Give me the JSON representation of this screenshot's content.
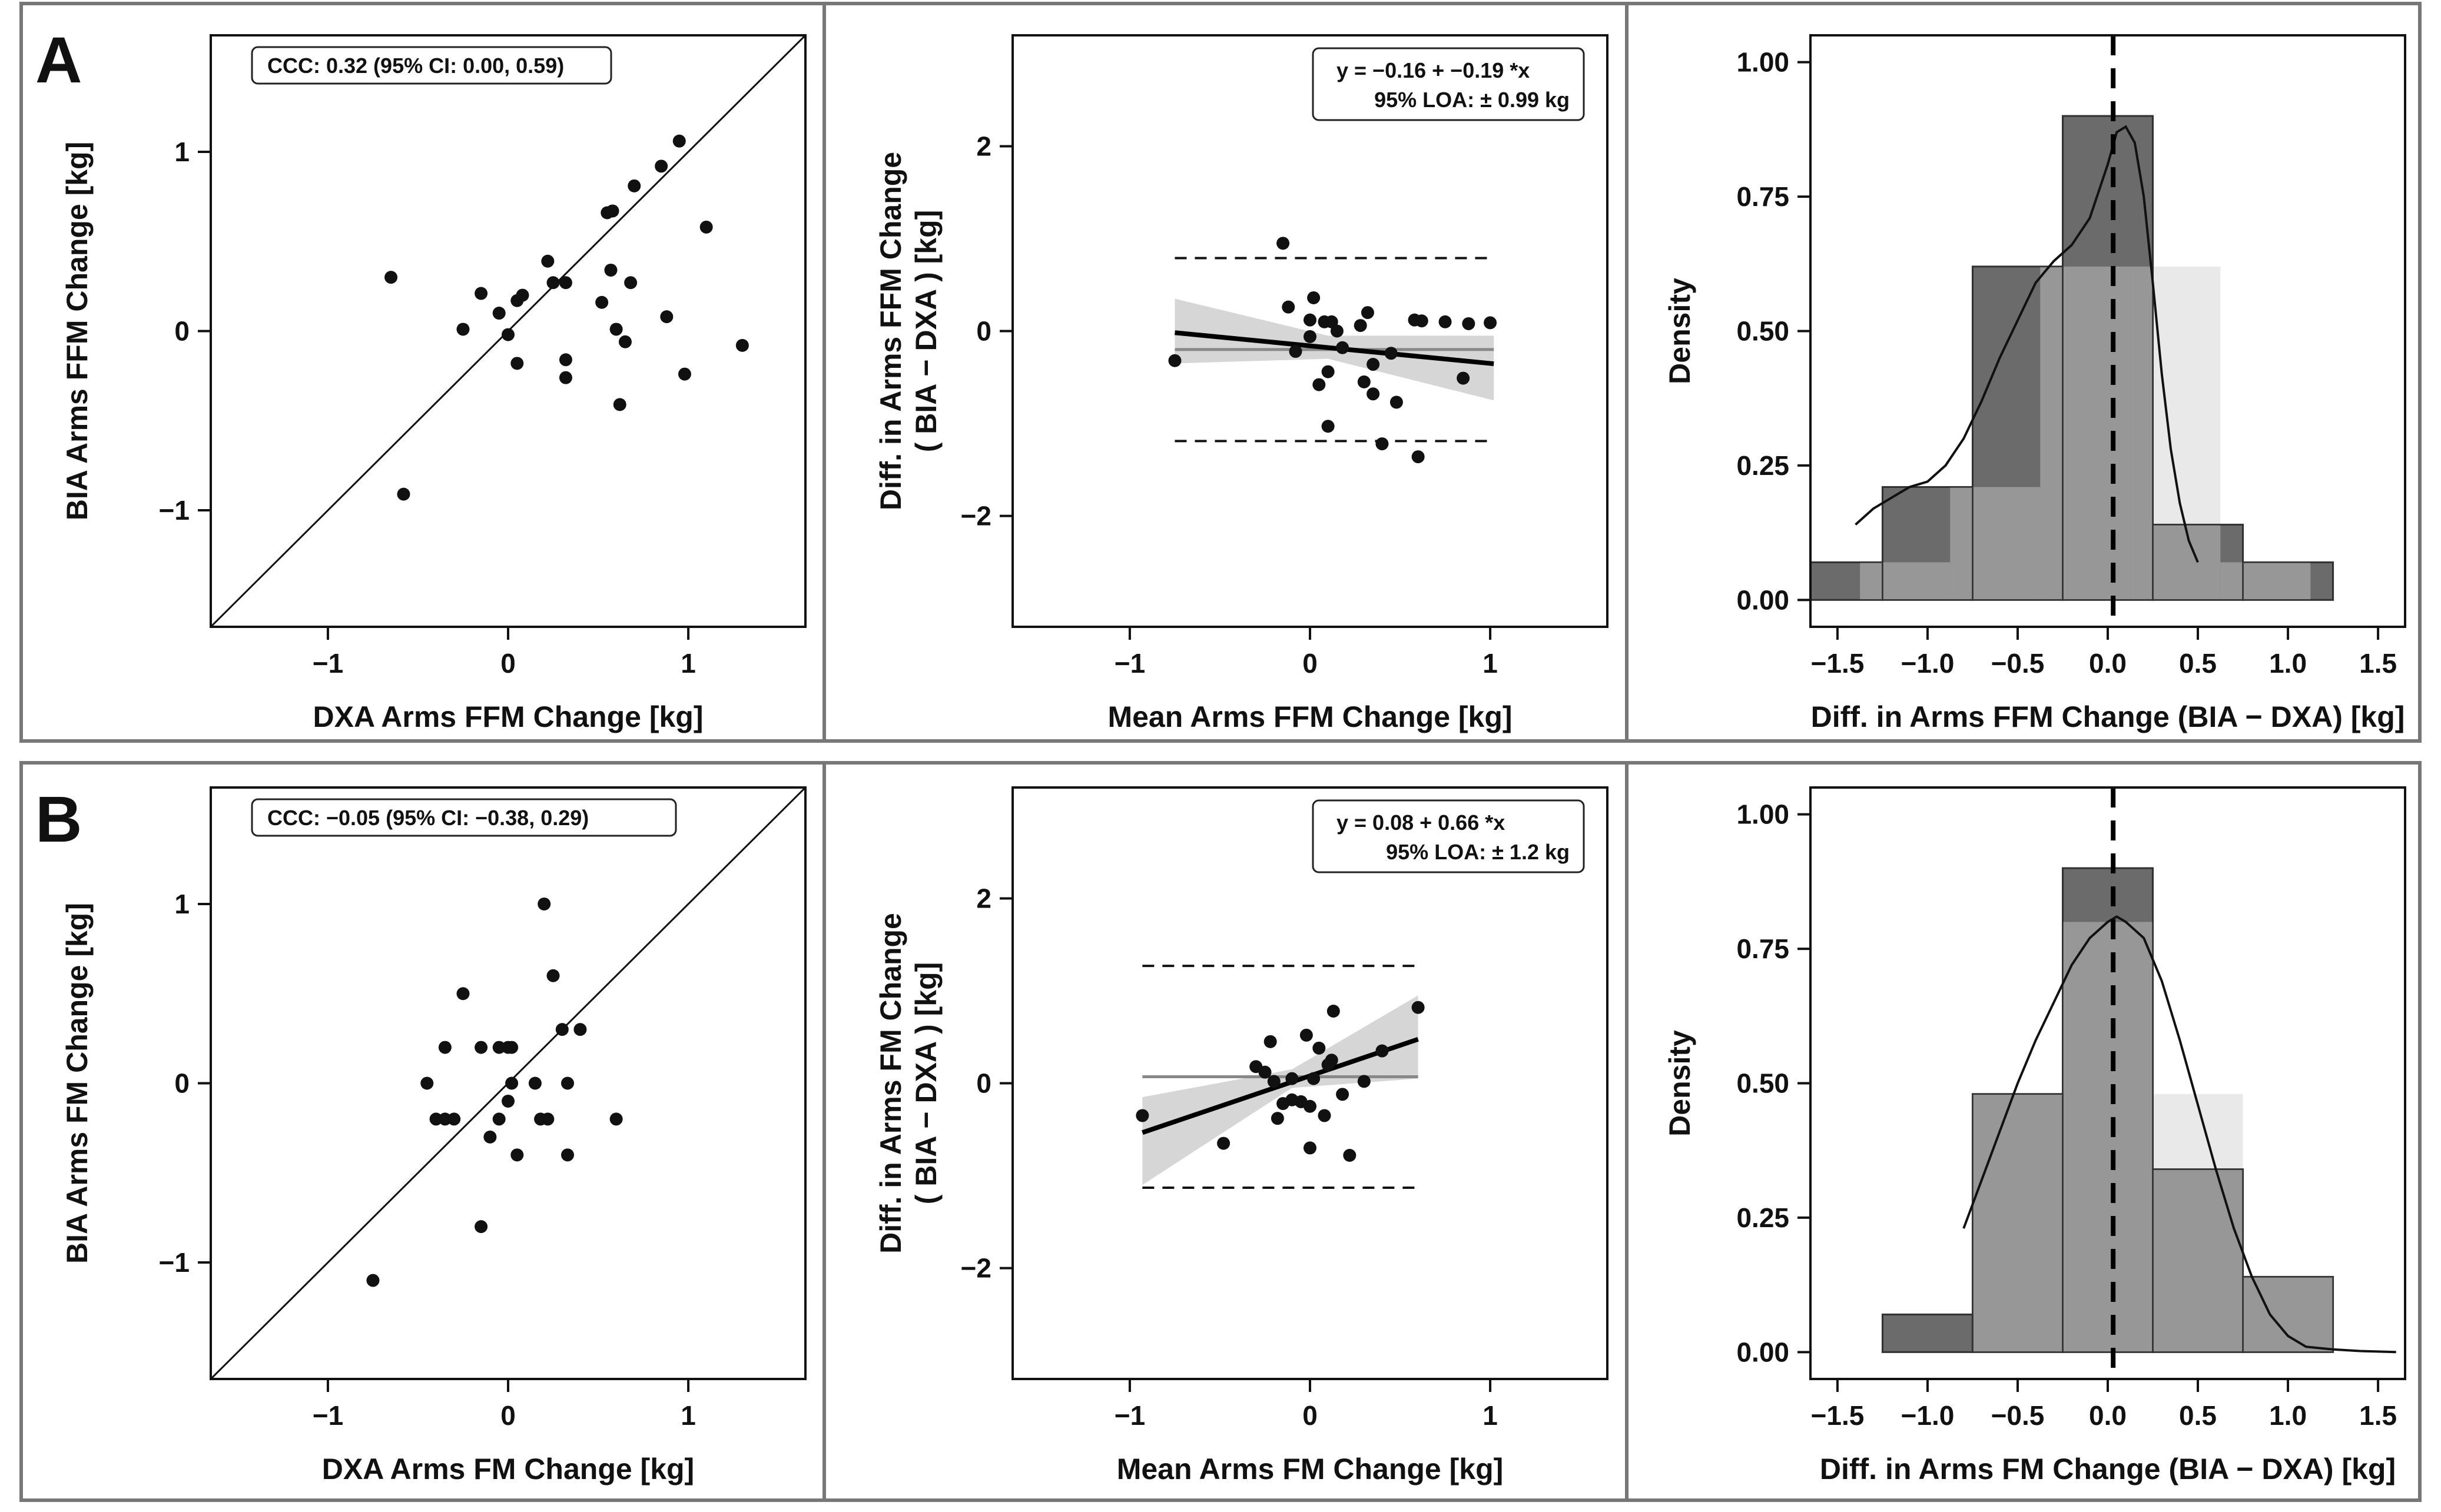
{
  "figure": {
    "rows": [
      {
        "letter": "A"
      },
      {
        "letter": "B"
      }
    ]
  },
  "chart_data": [
    {
      "id": "A-scatter",
      "type": "scatter",
      "row": "A",
      "xlabel": "DXA Arms FFM Change [kg]",
      "ylabel": "BIA Arms FFM Change [kg]",
      "xlim": [
        -1.65,
        1.65
      ],
      "ylim": [
        -1.65,
        1.65
      ],
      "xticks": [
        -1,
        0,
        1
      ],
      "yticks": [
        -1,
        0,
        1
      ],
      "xtick_labels": [
        "−1",
        "0",
        "1"
      ],
      "ytick_labels": [
        "−1",
        "0",
        "1"
      ],
      "annotation": "CCC:  0.32 (95% CI: 0.00, 0.59)",
      "identity_line": true,
      "points": [
        [
          -0.65,
          0.3
        ],
        [
          -0.58,
          -0.91
        ],
        [
          -0.25,
          0.01
        ],
        [
          -0.15,
          0.21
        ],
        [
          -0.05,
          0.1
        ],
        [
          0.0,
          -0.02
        ],
        [
          0.05,
          0.17
        ],
        [
          0.08,
          0.2
        ],
        [
          0.05,
          -0.18
        ],
        [
          0.22,
          0.39
        ],
        [
          0.25,
          0.27
        ],
        [
          0.32,
          0.27
        ],
        [
          0.32,
          -0.16
        ],
        [
          0.32,
          -0.26
        ],
        [
          0.52,
          0.16
        ],
        [
          0.55,
          0.66
        ],
        [
          0.58,
          0.67
        ],
        [
          0.57,
          0.34
        ],
        [
          0.6,
          0.01
        ],
        [
          0.62,
          -0.41
        ],
        [
          0.65,
          -0.06
        ],
        [
          0.68,
          0.27
        ],
        [
          0.7,
          0.81
        ],
        [
          0.85,
          0.92
        ],
        [
          0.88,
          0.08
        ],
        [
          0.95,
          1.06
        ],
        [
          0.98,
          -0.24
        ],
        [
          1.1,
          0.58
        ],
        [
          1.3,
          -0.08
        ]
      ]
    },
    {
      "id": "A-bland",
      "type": "scatter",
      "row": "A",
      "xlabel": "Mean Arms FFM Change [kg]",
      "ylabel_line1": "Diff. in Arms FFM Change",
      "ylabel_line2": "( BIA − DXA ) [kg]",
      "xlim": [
        -1.65,
        1.65
      ],
      "ylim": [
        -3.2,
        3.2
      ],
      "xticks": [
        -1,
        0,
        1
      ],
      "yticks": [
        -2,
        0,
        2
      ],
      "xtick_labels": [
        "−1",
        "0",
        "1"
      ],
      "ytick_labels": [
        "−2",
        "0",
        "2"
      ],
      "annotation_line1": "y =  −0.16 + −0.19 *x",
      "annotation_line2": "95% LOA: ± 0.99 kg",
      "mean_diff": -0.2,
      "loa_upper": 0.79,
      "loa_lower": -1.19,
      "regression": {
        "intercept": -0.16,
        "slope": -0.19,
        "x_range": [
          -0.75,
          1.02
        ]
      },
      "ci_band": [
        [
          -0.75,
          0.35,
          -0.35
        ],
        [
          0.1,
          -0.05,
          -0.3
        ],
        [
          1.02,
          -0.05,
          -0.75
        ]
      ],
      "points": [
        [
          -0.75,
          -0.32
        ],
        [
          -0.15,
          0.95
        ],
        [
          -0.12,
          0.26
        ],
        [
          -0.08,
          -0.22
        ],
        [
          0.0,
          0.12
        ],
        [
          0.0,
          -0.06
        ],
        [
          0.02,
          0.36
        ],
        [
          0.05,
          -0.58
        ],
        [
          0.08,
          0.1
        ],
        [
          0.1,
          -0.44
        ],
        [
          0.12,
          0.1
        ],
        [
          0.15,
          0.0
        ],
        [
          0.18,
          -0.18
        ],
        [
          0.1,
          -1.03
        ],
        [
          0.28,
          0.06
        ],
        [
          0.3,
          -0.55
        ],
        [
          0.32,
          0.2
        ],
        [
          0.35,
          -0.68
        ],
        [
          0.35,
          -0.36
        ],
        [
          0.4,
          -1.22
        ],
        [
          0.45,
          -0.24
        ],
        [
          0.48,
          -0.77
        ],
        [
          0.58,
          0.12
        ],
        [
          0.6,
          -1.36
        ],
        [
          0.62,
          0.11
        ],
        [
          0.75,
          0.1
        ],
        [
          0.85,
          -0.51
        ],
        [
          0.88,
          0.08
        ],
        [
          1.0,
          0.09
        ]
      ]
    },
    {
      "id": "A-hist",
      "type": "bar",
      "row": "A",
      "xlabel": "Diff. in Arms FFM Change (BIA − DXA) [kg]",
      "ylabel": "Density",
      "xlim": [
        -1.65,
        1.65
      ],
      "ylim": [
        -0.05,
        1.05
      ],
      "xticks": [
        -1.5,
        -1.0,
        -0.5,
        0.0,
        0.5,
        1.0,
        1.5
      ],
      "yticks": [
        0.0,
        0.25,
        0.5,
        0.75,
        1.0
      ],
      "xtick_labels": [
        "−1.5",
        "−1.0",
        "−0.5",
        "0.0",
        "0.5",
        "1.0",
        "1.5"
      ],
      "ytick_labels": [
        "0.00",
        "0.25",
        "0.50",
        "0.75",
        "1.00"
      ],
      "bins": [
        [
          -1.75,
          -1.25,
          0.07
        ],
        [
          -1.25,
          -0.75,
          0.21
        ],
        [
          -0.75,
          -0.25,
          0.62
        ],
        [
          -0.25,
          0.25,
          0.9
        ],
        [
          0.25,
          0.75,
          0.14
        ],
        [
          0.75,
          1.25,
          0.07
        ]
      ],
      "normal_bins": [
        [
          -1.375,
          -0.875,
          0.07
        ],
        [
          -0.875,
          -0.375,
          0.21
        ],
        [
          -0.375,
          0.125,
          0.62
        ],
        [
          0.125,
          0.625,
          0.62
        ],
        [
          0.625,
          1.125,
          0.07
        ]
      ],
      "mean_line": 0.03,
      "density_curve": [
        [
          -1.4,
          0.14
        ],
        [
          -1.3,
          0.17
        ],
        [
          -1.2,
          0.19
        ],
        [
          -1.1,
          0.21
        ],
        [
          -1.0,
          0.22
        ],
        [
          -0.9,
          0.25
        ],
        [
          -0.8,
          0.3
        ],
        [
          -0.7,
          0.37
        ],
        [
          -0.6,
          0.45
        ],
        [
          -0.5,
          0.52
        ],
        [
          -0.4,
          0.59
        ],
        [
          -0.3,
          0.63
        ],
        [
          -0.2,
          0.66
        ],
        [
          -0.1,
          0.71
        ],
        [
          0.0,
          0.81
        ],
        [
          0.05,
          0.87
        ],
        [
          0.1,
          0.88
        ],
        [
          0.15,
          0.85
        ],
        [
          0.2,
          0.75
        ],
        [
          0.25,
          0.59
        ],
        [
          0.3,
          0.42
        ],
        [
          0.35,
          0.28
        ],
        [
          0.4,
          0.18
        ],
        [
          0.45,
          0.11
        ],
        [
          0.5,
          0.07
        ]
      ]
    },
    {
      "id": "B-scatter",
      "type": "scatter",
      "row": "B",
      "xlabel": "DXA Arms FM Change [kg]",
      "ylabel": "BIA Arms FM Change [kg]",
      "xlim": [
        -1.65,
        1.65
      ],
      "ylim": [
        -1.65,
        1.65
      ],
      "xticks": [
        -1,
        0,
        1
      ],
      "yticks": [
        -1,
        0,
        1
      ],
      "xtick_labels": [
        "−1",
        "0",
        "1"
      ],
      "ytick_labels": [
        "−1",
        "0",
        "1"
      ],
      "annotation": "CCC:  −0.05 (95% CI: −0.38, 0.29)",
      "identity_line": true,
      "points": [
        [
          -0.75,
          -1.1
        ],
        [
          -0.45,
          0.0
        ],
        [
          -0.4,
          -0.2
        ],
        [
          -0.35,
          -0.2
        ],
        [
          -0.3,
          -0.2
        ],
        [
          -0.35,
          0.2
        ],
        [
          -0.25,
          0.5
        ],
        [
          -0.15,
          -0.8
        ],
        [
          -0.15,
          0.2
        ],
        [
          -0.1,
          -0.3
        ],
        [
          -0.05,
          0.2
        ],
        [
          0.0,
          0.2
        ],
        [
          0.02,
          0.2
        ],
        [
          0.0,
          -0.1
        ],
        [
          0.02,
          0.0
        ],
        [
          0.05,
          -0.4
        ],
        [
          -0.05,
          -0.2
        ],
        [
          0.15,
          0.0
        ],
        [
          0.18,
          -0.2
        ],
        [
          0.2,
          1.0
        ],
        [
          0.22,
          -0.2
        ],
        [
          0.25,
          0.6
        ],
        [
          0.3,
          0.3
        ],
        [
          0.33,
          0.0
        ],
        [
          0.33,
          -0.4
        ],
        [
          0.4,
          0.3
        ],
        [
          0.6,
          -0.2
        ]
      ]
    },
    {
      "id": "B-bland",
      "type": "scatter",
      "row": "B",
      "xlabel": "Mean Arms FM Change [kg]",
      "ylabel_line1": "Diff. in Arms FM Change",
      "ylabel_line2": "( BIA − DXA ) [kg]",
      "xlim": [
        -1.65,
        1.65
      ],
      "ylim": [
        -3.2,
        3.2
      ],
      "xticks": [
        -1,
        0,
        1
      ],
      "yticks": [
        -2,
        0,
        2
      ],
      "xtick_labels": [
        "−1",
        "0",
        "1"
      ],
      "ytick_labels": [
        "−2",
        "0",
        "2"
      ],
      "annotation_line1": "y =  0.08 + 0.66 *x",
      "annotation_line2": "95% LOA: ± 1.2 kg",
      "mean_diff": 0.07,
      "loa_upper": 1.27,
      "loa_lower": -1.13,
      "regression": {
        "intercept": 0.08,
        "slope": 0.66,
        "x_range": [
          -0.93,
          0.6
        ]
      },
      "ci_band": [
        [
          -0.93,
          -0.15,
          -1.1
        ],
        [
          -0.1,
          0.15,
          -0.05
        ],
        [
          0.6,
          0.95,
          0.05
        ]
      ],
      "points": [
        [
          -0.93,
          -0.35
        ],
        [
          -0.48,
          -0.65
        ],
        [
          -0.3,
          0.18
        ],
        [
          -0.25,
          0.12
        ],
        [
          -0.22,
          0.45
        ],
        [
          -0.2,
          0.02
        ],
        [
          -0.18,
          -0.38
        ],
        [
          -0.15,
          -0.22
        ],
        [
          -0.1,
          -0.18
        ],
        [
          -0.1,
          0.05
        ],
        [
          -0.05,
          -0.2
        ],
        [
          -0.02,
          0.52
        ],
        [
          0.0,
          -0.7
        ],
        [
          0.0,
          -0.25
        ],
        [
          0.02,
          0.05
        ],
        [
          0.05,
          0.38
        ],
        [
          0.08,
          -0.35
        ],
        [
          0.1,
          0.2
        ],
        [
          0.12,
          0.25
        ],
        [
          0.13,
          0.78
        ],
        [
          0.18,
          -0.12
        ],
        [
          0.22,
          -0.78
        ],
        [
          0.3,
          0.02
        ],
        [
          0.4,
          0.35
        ],
        [
          0.6,
          0.82
        ]
      ]
    },
    {
      "id": "B-hist",
      "type": "bar",
      "row": "B",
      "xlabel": "Diff. in Arms FM Change (BIA − DXA) [kg]",
      "ylabel": "Density",
      "xlim": [
        -1.65,
        1.65
      ],
      "ylim": [
        -0.05,
        1.05
      ],
      "xticks": [
        -1.5,
        -1.0,
        -0.5,
        0.0,
        0.5,
        1.0,
        1.5
      ],
      "yticks": [
        0.0,
        0.25,
        0.5,
        0.75,
        1.0
      ],
      "xtick_labels": [
        "−1.5",
        "−1.0",
        "−0.5",
        "0.0",
        "0.5",
        "1.0",
        "1.5"
      ],
      "ytick_labels": [
        "0.00",
        "0.25",
        "0.50",
        "0.75",
        "1.00"
      ],
      "bins": [
        [
          -1.25,
          -0.75,
          0.07
        ],
        [
          -0.75,
          -0.25,
          0.48
        ],
        [
          -0.25,
          0.25,
          0.9
        ],
        [
          0.25,
          0.75,
          0.34
        ],
        [
          0.75,
          1.25,
          0.14
        ]
      ],
      "normal_bins": [
        [
          -0.75,
          -0.25,
          0.48
        ],
        [
          -0.25,
          0.25,
          0.8
        ],
        [
          0.25,
          0.75,
          0.48
        ],
        [
          0.75,
          1.25,
          0.14
        ]
      ],
      "mean_line": 0.03,
      "density_curve": [
        [
          -0.8,
          0.23
        ],
        [
          -0.7,
          0.32
        ],
        [
          -0.6,
          0.41
        ],
        [
          -0.5,
          0.5
        ],
        [
          -0.4,
          0.58
        ],
        [
          -0.3,
          0.65
        ],
        [
          -0.2,
          0.72
        ],
        [
          -0.1,
          0.77
        ],
        [
          0.0,
          0.8
        ],
        [
          0.05,
          0.81
        ],
        [
          0.1,
          0.8
        ],
        [
          0.2,
          0.77
        ],
        [
          0.3,
          0.69
        ],
        [
          0.4,
          0.58
        ],
        [
          0.5,
          0.46
        ],
        [
          0.6,
          0.34
        ],
        [
          0.7,
          0.23
        ],
        [
          0.8,
          0.14
        ],
        [
          0.9,
          0.07
        ],
        [
          1.0,
          0.03
        ],
        [
          1.1,
          0.01
        ],
        [
          1.25,
          0.005
        ],
        [
          1.4,
          0.002
        ],
        [
          1.6,
          0.0
        ]
      ]
    }
  ]
}
